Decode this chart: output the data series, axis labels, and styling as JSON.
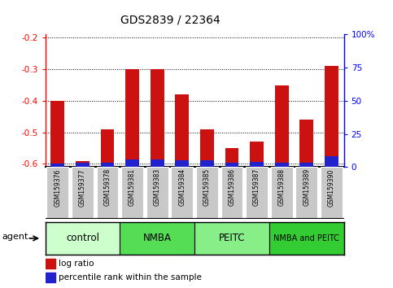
{
  "title": "GDS2839 / 22364",
  "samples": [
    "GSM159376",
    "GSM159377",
    "GSM159378",
    "GSM159381",
    "GSM159383",
    "GSM159384",
    "GSM159385",
    "GSM159386",
    "GSM159387",
    "GSM159388",
    "GSM159389",
    "GSM159390"
  ],
  "log_ratio": [
    -0.4,
    -0.59,
    -0.49,
    -0.3,
    -0.3,
    -0.38,
    -0.49,
    -0.55,
    -0.53,
    -0.35,
    -0.46,
    -0.29
  ],
  "percentile": [
    2.5,
    3.0,
    3.0,
    6.0,
    6.0,
    5.0,
    5.0,
    3.0,
    4.0,
    3.0,
    3.0,
    8.0
  ],
  "ylim_left": [
    -0.61,
    -0.19
  ],
  "ylim_right": [
    0,
    100
  ],
  "yticks_left": [
    -0.6,
    -0.5,
    -0.4,
    -0.3,
    -0.2
  ],
  "yticks_right": [
    0,
    25,
    50,
    75,
    100
  ],
  "ytick_labels_right": [
    "0",
    "25",
    "50",
    "75",
    "100%"
  ],
  "agent_groups": [
    {
      "label": "control",
      "start": 0,
      "end": 3,
      "color": "#ccffcc"
    },
    {
      "label": "NMBA",
      "start": 3,
      "end": 6,
      "color": "#55dd55"
    },
    {
      "label": "PEITC",
      "start": 6,
      "end": 9,
      "color": "#88ee88"
    },
    {
      "label": "NMBA and PEITC",
      "start": 9,
      "end": 12,
      "color": "#33cc33"
    }
  ],
  "bar_color_red": "#cc1111",
  "bar_color_blue": "#2222cc",
  "bar_width": 0.55,
  "legend_red_label": "log ratio",
  "legend_blue_label": "percentile rank within the sample",
  "title_fontsize": 10,
  "tick_fontsize": 7.5,
  "sample_fontsize": 5.5,
  "agent_fontsize": 8.5
}
